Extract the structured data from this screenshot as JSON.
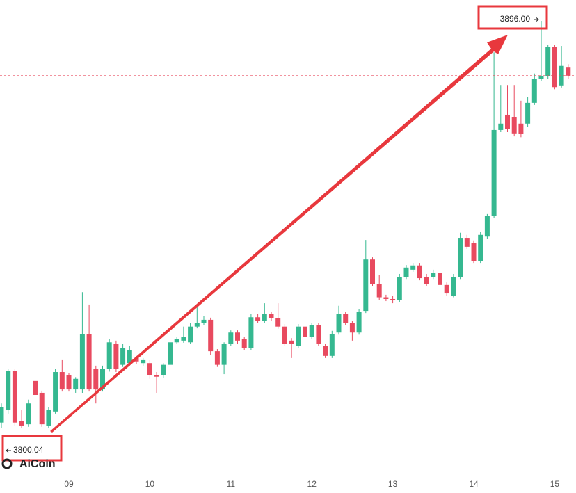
{
  "chart_data": {
    "type": "candlestick",
    "categories": [
      null,
      null,
      null,
      null,
      null,
      null,
      null,
      null,
      null,
      null,
      "09",
      null,
      null,
      null,
      null,
      null,
      null,
      null,
      null,
      null,
      null,
      null,
      "10",
      null,
      null,
      null,
      null,
      null,
      null,
      null,
      null,
      null,
      null,
      null,
      "11",
      null,
      null,
      null,
      null,
      null,
      null,
      null,
      null,
      null,
      null,
      null,
      "12",
      null,
      null,
      null,
      null,
      null,
      null,
      null,
      null,
      null,
      null,
      null,
      "13",
      null,
      null,
      null,
      null,
      null,
      null,
      null,
      null,
      null,
      null,
      null,
      "14",
      null,
      null,
      null,
      null,
      null,
      null,
      null,
      null,
      null,
      null,
      null,
      "15",
      null,
      null
    ],
    "open": [
      3801.4,
      3804.3,
      3813.6,
      3801.8,
      3801.0,
      3811.2,
      3808.4,
      3800.7,
      3804.0,
      3813.3,
      3812.5,
      3809.2,
      3809.2,
      3822.3,
      3814.1,
      3809.2,
      3814.1,
      3819.9,
      3815.0,
      3815.4,
      3816.6,
      3815.4,
      3815.4,
      3812.5,
      3812.5,
      3815.0,
      3820.3,
      3820.7,
      3820.3,
      3824.0,
      3824.8,
      3825.6,
      3818.2,
      3815.0,
      3819.9,
      3822.6,
      3821.0,
      3819.0,
      3826.2,
      3825.3,
      3826.9,
      3826.0,
      3824.0,
      3820.7,
      3819.5,
      3824.0,
      3821.5,
      3824.3,
      3819.4,
      3817.1,
      3822.6,
      3826.9,
      3824.8,
      3822.6,
      3827.7,
      3839.8,
      3834.1,
      3830.9,
      3830.5,
      3830.2,
      3835.7,
      3837.4,
      3838.4,
      3835.7,
      3835.7,
      3836.7,
      3833.8,
      3831.3,
      3835.7,
      3844.9,
      3843.6,
      3839.5,
      3845.2,
      3850.1,
      3870.3,
      3873.9,
      3873.4,
      3871.8,
      3871.8,
      3876.7,
      3882.4,
      3882.9,
      3889.8,
      3880.8,
      3885.0
    ],
    "high": [
      3805.9,
      3814.1,
      3814.1,
      3804.3,
      3806.8,
      3811.7,
      3808.9,
      3805.1,
      3814.1,
      3816.1,
      3813.0,
      3812.1,
      3832.1,
      3829.2,
      3814.8,
      3814.8,
      3821.0,
      3820.7,
      3819.9,
      3819.4,
      3817.1,
      3816.6,
      3816.1,
      3813.3,
      3815.4,
      3821.0,
      3821.6,
      3824.0,
      3824.8,
      3828.9,
      3826.4,
      3826.1,
      3818.7,
      3820.3,
      3823.1,
      3823.1,
      3821.5,
      3826.9,
      3826.9,
      3829.5,
      3827.5,
      3829.5,
      3824.6,
      3821.3,
      3824.6,
      3824.6,
      3824.9,
      3824.9,
      3820.0,
      3823.0,
      3828.9,
      3827.4,
      3825.3,
      3828.2,
      3844.4,
      3840.3,
      3836.2,
      3831.5,
      3831.3,
      3836.4,
      3838.5,
      3839.0,
      3839.0,
      3836.4,
      3837.4,
      3837.4,
      3834.4,
      3836.4,
      3846.1,
      3845.6,
      3844.3,
      3846.3,
      3850.5,
      3888.6,
      3880.9,
      3880.9,
      3880.9,
      3877.2,
      3878.0,
      3883.6,
      3896.0,
      3890.4,
      3890.4,
      3890.1,
      3885.8
    ],
    "low": [
      3800.2,
      3803.5,
      3800.7,
      3800.04,
      3800.4,
      3807.2,
      3800.4,
      3800.2,
      3803.5,
      3808.7,
      3808.7,
      3808.4,
      3808.4,
      3808.7,
      3805.9,
      3808.7,
      3813.4,
      3813.3,
      3814.5,
      3814.8,
      3815.1,
      3814.8,
      3811.7,
      3808.4,
      3812.0,
      3814.5,
      3819.9,
      3820.2,
      3819.9,
      3823.6,
      3824.3,
      3817.4,
      3814.5,
      3812.8,
      3819.4,
      3820.0,
      3818.5,
      3818.5,
      3824.8,
      3824.8,
      3825.4,
      3823.5,
      3819.4,
      3816.6,
      3819.0,
      3821.0,
      3821.0,
      3819.4,
      3816.6,
      3816.6,
      3822.1,
      3824.3,
      3820.7,
      3822.1,
      3827.2,
      3833.6,
      3830.3,
      3830.0,
      3829.5,
      3829.7,
      3835.2,
      3836.9,
      3834.9,
      3833.6,
      3835.2,
      3833.3,
      3831.3,
      3830.9,
      3835.2,
      3842.3,
      3839.0,
      3839.0,
      3844.7,
      3849.6,
      3869.8,
      3869.8,
      3868.8,
      3868.6,
      3871.1,
      3876.2,
      3881.9,
      3882.4,
      3879.9,
      3880.3,
      3882.4
    ],
    "close": [
      3805.1,
      3813.6,
      3801.4,
      3800.7,
      3805.9,
      3807.9,
      3801.0,
      3804.3,
      3813.3,
      3809.2,
      3809.2,
      3811.7,
      3822.3,
      3809.2,
      3809.2,
      3814.1,
      3820.3,
      3814.1,
      3819.0,
      3818.5,
      3815.8,
      3816.1,
      3812.5,
      3812.2,
      3815.0,
      3820.3,
      3821.0,
      3821.5,
      3824.0,
      3824.8,
      3825.6,
      3818.2,
      3815.0,
      3819.9,
      3822.6,
      3820.7,
      3819.0,
      3826.2,
      3825.3,
      3826.9,
      3826.0,
      3824.0,
      3819.9,
      3819.9,
      3824.0,
      3821.5,
      3824.3,
      3819.9,
      3817.1,
      3822.3,
      3826.9,
      3824.8,
      3822.6,
      3827.5,
      3839.8,
      3834.1,
      3830.9,
      3830.5,
      3830.2,
      3835.7,
      3837.9,
      3838.4,
      3835.4,
      3834.1,
      3836.7,
      3833.8,
      3831.8,
      3835.7,
      3844.9,
      3842.8,
      3839.5,
      3845.6,
      3850.1,
      3870.3,
      3871.8,
      3870.6,
      3869.5,
      3869.4,
      3876.7,
      3882.4,
      3882.9,
      3889.8,
      3880.4,
      3885.4,
      3883.1
    ],
    "up_color": "#35b890",
    "down_color": "#e84a5f",
    "annotations": [
      {
        "value": 3896.0,
        "label": "3896.00"
      },
      {
        "value": 3800.04,
        "label": "3800.04"
      }
    ],
    "watermark": "AiCoin"
  }
}
